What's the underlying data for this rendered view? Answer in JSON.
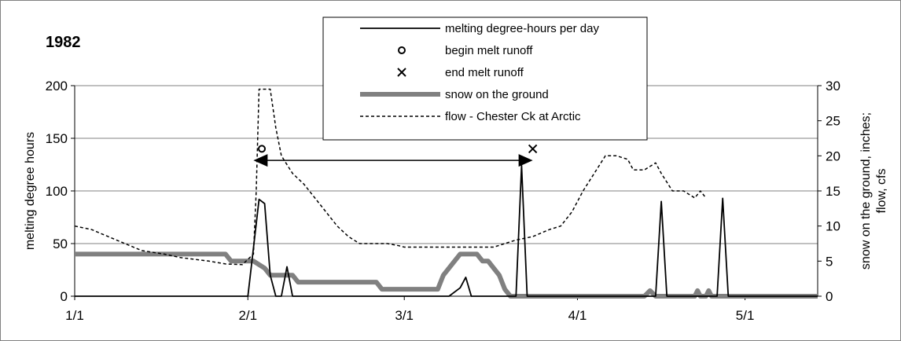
{
  "chart_data": {
    "type": "line",
    "year_label": "1982",
    "x_axis": {
      "ticks": [
        "1/1",
        "2/1",
        "3/1",
        "4/1",
        "5/1"
      ],
      "tick_days": [
        1,
        32,
        60,
        91,
        121
      ],
      "xlim": [
        1,
        134
      ]
    },
    "y_left": {
      "label": "melting degree hours",
      "ticks": [
        "0",
        "50",
        "100",
        "150",
        "200"
      ],
      "tick_values": [
        0,
        50,
        100,
        150,
        200
      ],
      "ylim": [
        0,
        200
      ]
    },
    "y_right": {
      "label_line1": "snow on the ground, inches;",
      "label_line2": "flow, cfs",
      "ticks": [
        "0",
        "5",
        "10",
        "15",
        "20",
        "25",
        "30"
      ],
      "tick_values": [
        0,
        5,
        10,
        15,
        20,
        25,
        30
      ],
      "ylim": [
        0,
        30
      ]
    },
    "grid": true,
    "legend": {
      "placement": "top-center",
      "entries": [
        {
          "label": "melting degree-hours per day",
          "style": "solid-thin"
        },
        {
          "label": "begin melt runoff",
          "style": "open-circle"
        },
        {
          "label": "end melt runoff",
          "style": "x-marker"
        },
        {
          "label": "snow on the ground",
          "style": "thick-gray"
        },
        {
          "label": "flow - Chester Ck at Arctic",
          "style": "dashed"
        }
      ]
    },
    "series": [
      {
        "name": "melting degree-hours per day",
        "axis": "left",
        "points": [
          [
            1,
            0
          ],
          [
            32,
            0
          ],
          [
            34,
            92
          ],
          [
            35,
            88
          ],
          [
            36,
            20
          ],
          [
            37,
            0
          ],
          [
            38,
            0
          ],
          [
            39,
            28
          ],
          [
            40,
            0
          ],
          [
            68,
            0
          ],
          [
            70,
            8
          ],
          [
            71,
            18
          ],
          [
            72,
            0
          ],
          [
            80,
            0
          ],
          [
            81,
            124
          ],
          [
            82,
            0
          ],
          [
            105,
            0
          ],
          [
            106,
            90
          ],
          [
            107,
            0
          ],
          [
            116,
            0
          ],
          [
            117,
            93
          ],
          [
            118,
            0
          ],
          [
            134,
            0
          ]
        ]
      },
      {
        "name": "snow on the ground",
        "axis": "right",
        "points": [
          [
            1,
            6
          ],
          [
            28,
            6
          ],
          [
            29,
            5
          ],
          [
            33,
            5
          ],
          [
            35,
            4
          ],
          [
            36,
            3
          ],
          [
            40,
            3
          ],
          [
            41,
            2
          ],
          [
            55,
            2
          ],
          [
            56,
            1
          ],
          [
            66,
            1
          ],
          [
            67,
            3
          ],
          [
            69,
            5
          ],
          [
            70,
            6
          ],
          [
            73,
            6
          ],
          [
            74,
            5
          ],
          [
            75,
            5
          ],
          [
            77,
            3
          ],
          [
            78,
            1
          ],
          [
            79,
            0
          ],
          [
            103,
            0
          ],
          [
            104,
            0.8
          ],
          [
            105,
            0
          ],
          [
            109,
            0
          ],
          [
            112,
            0
          ],
          [
            112.5,
            0.8
          ],
          [
            113,
            0
          ],
          [
            114,
            0
          ],
          [
            114.5,
            0.8
          ],
          [
            115,
            0
          ],
          [
            134,
            0
          ]
        ]
      },
      {
        "name": "flow - Chester Ck at Arctic",
        "axis": "right",
        "points": [
          [
            1,
            10
          ],
          [
            4,
            9.5
          ],
          [
            7,
            8.5
          ],
          [
            10,
            7.5
          ],
          [
            13,
            6.5
          ],
          [
            17,
            6
          ],
          [
            20,
            5.5
          ],
          [
            25,
            5
          ],
          [
            28,
            4.6
          ],
          [
            31,
            4.5
          ],
          [
            33,
            6
          ],
          [
            33.5,
            15
          ],
          [
            34,
            29.5
          ],
          [
            36,
            29.5
          ],
          [
            37,
            24
          ],
          [
            38,
            20
          ],
          [
            40,
            17.5
          ],
          [
            42,
            16
          ],
          [
            44,
            14
          ],
          [
            46,
            12
          ],
          [
            48,
            10
          ],
          [
            50,
            8.5
          ],
          [
            52,
            7.5
          ],
          [
            57,
            7.5
          ],
          [
            59,
            7.2
          ],
          [
            60,
            7
          ],
          [
            64,
            7
          ],
          [
            68,
            7
          ],
          [
            72,
            7
          ],
          [
            76,
            7
          ],
          [
            78,
            7.5
          ],
          [
            80,
            8
          ],
          [
            83,
            8.5
          ],
          [
            86,
            9.5
          ],
          [
            88,
            10
          ],
          [
            90,
            12
          ],
          [
            92,
            15
          ],
          [
            94,
            17.5
          ],
          [
            96,
            20
          ],
          [
            98,
            20
          ],
          [
            100,
            19.5
          ],
          [
            101,
            18
          ],
          [
            103,
            18
          ],
          [
            104,
            18.5
          ],
          [
            105,
            19
          ],
          [
            106,
            17.5
          ],
          [
            108,
            15
          ],
          [
            110,
            15
          ],
          [
            112,
            14
          ],
          [
            113,
            15
          ],
          [
            114,
            14
          ]
        ]
      }
    ],
    "annotations": [
      {
        "name": "begin melt runoff",
        "marker": "open-circle",
        "x": 34.5,
        "y_left": 140
      },
      {
        "name": "end melt runoff",
        "marker": "x-marker",
        "x": 83,
        "y_left": 140
      },
      {
        "name": "melt runoff period arrow",
        "x_start": 33,
        "x_end": 83,
        "y_left": 129
      }
    ]
  }
}
